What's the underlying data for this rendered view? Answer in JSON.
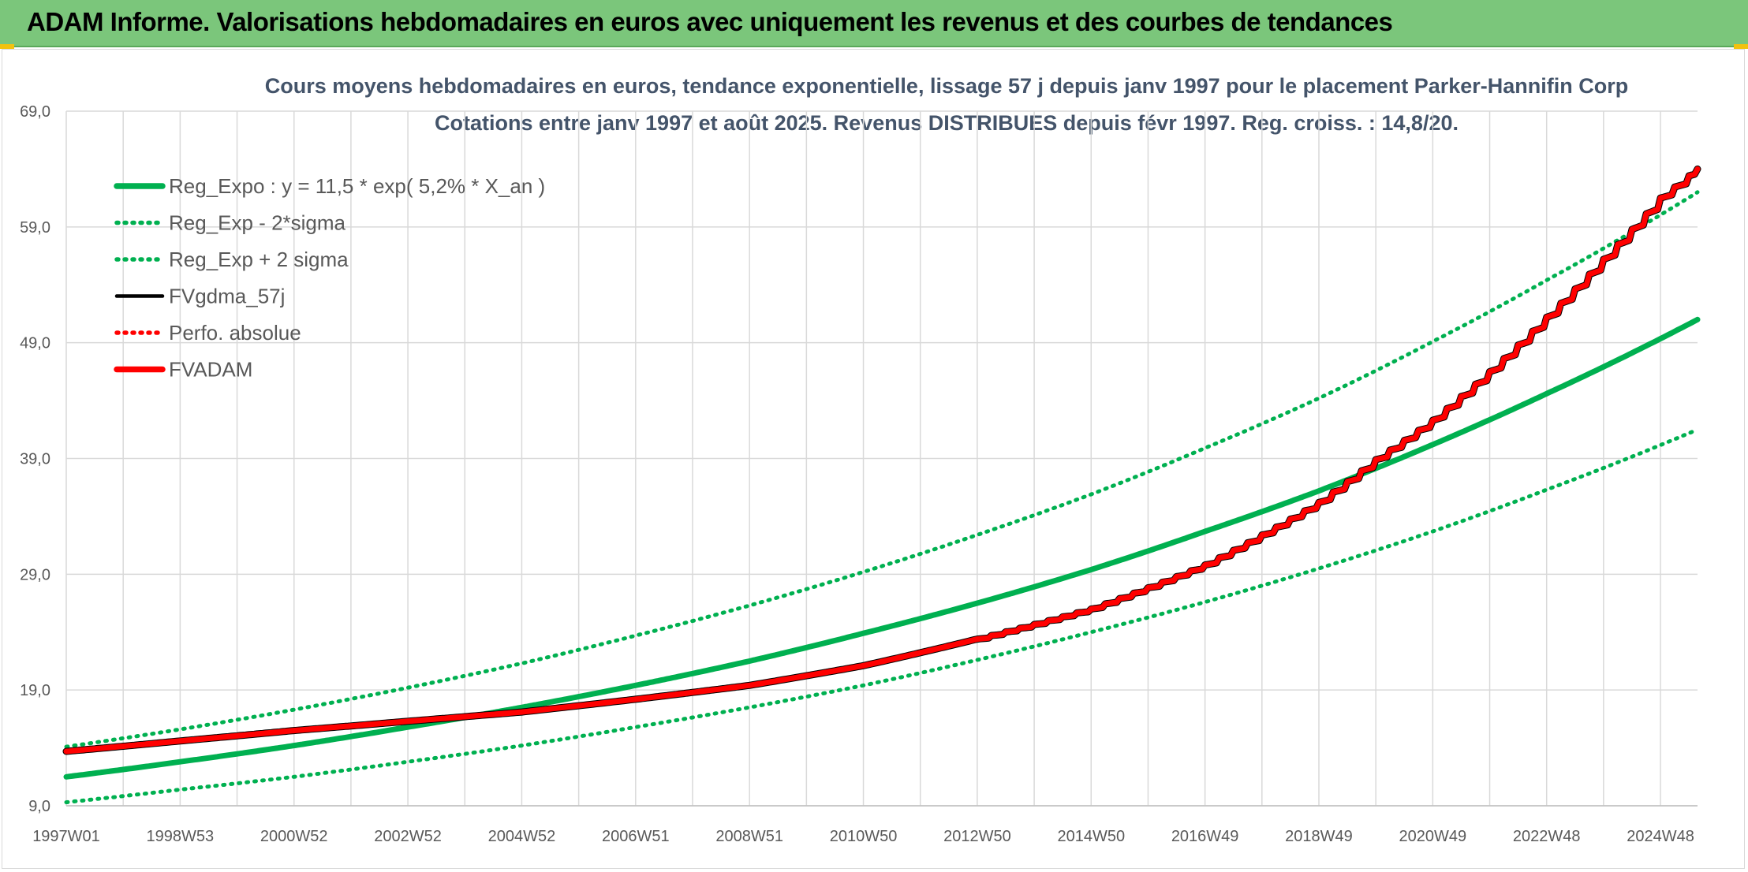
{
  "header": {
    "title": "ADAM Informe. Valorisations hebdomadaires en euros avec uniquement les revenus et des courbes de tendances"
  },
  "chart_data": {
    "type": "line",
    "title": "Cours moyens hebdomadaires en euros, tendance exponentielle, lissage 57 j depuis janv 1997 pour le placement Parker-Hannifin Corp",
    "subtitle": "Cotations entre janv 1997 et août 2025. Revenus DISTRIBUES depuis févr 1997. Reg. croiss. : 14,8/20.",
    "xlabel": "",
    "ylabel": "",
    "ylim": [
      9.0,
      69.0
    ],
    "xlim": [
      1997.0,
      2025.65
    ],
    "y_ticks": [
      "69,0",
      "59,0",
      "49,0",
      "39,0",
      "29,0",
      "19,0",
      "9,0"
    ],
    "y_tick_values": [
      69,
      59,
      49,
      39,
      29,
      19,
      9
    ],
    "x_ticks": [
      "1997W01",
      "1998W53",
      "2000W52",
      "2002W52",
      "2004W52",
      "2006W51",
      "2008W51",
      "2010W50",
      "2012W50",
      "2014W50",
      "2016W49",
      "2018W49",
      "2020W49",
      "2022W48",
      "2024W48"
    ],
    "x_tick_values": [
      1997.0,
      1999.0,
      2001.0,
      2003.0,
      2005.0,
      2007.0,
      2009.0,
      2011.0,
      2013.0,
      2015.0,
      2017.0,
      2019.0,
      2021.0,
      2023.0,
      2025.0
    ],
    "grid": true,
    "legend_position": "top-left",
    "series": [
      {
        "name": "Reg_Expo : y = 11,5 * exp( 5,2% *  X_an )",
        "color": "#00b050",
        "style": "solid-thick",
        "x": [
          1997,
          1999,
          2001,
          2003,
          2005,
          2007,
          2009,
          2011,
          2013,
          2015,
          2017,
          2019,
          2021,
          2023,
          2025.65
        ],
        "y": [
          11.5,
          12.8,
          14.2,
          15.8,
          17.5,
          19.4,
          21.5,
          23.9,
          26.5,
          29.4,
          32.7,
          36.2,
          40.2,
          44.6,
          51.0
        ]
      },
      {
        "name": "Reg_Exp - 2*sigma",
        "color": "#00b050",
        "style": "dotted",
        "x": [
          1997,
          1999,
          2001,
          2003,
          2005,
          2007,
          2009,
          2011,
          2013,
          2015,
          2017,
          2019,
          2021,
          2023,
          2025.65
        ],
        "y": [
          9.3,
          10.4,
          11.5,
          12.8,
          14.2,
          15.8,
          17.5,
          19.4,
          21.6,
          24.0,
          26.6,
          29.5,
          32.7,
          36.3,
          41.5
        ]
      },
      {
        "name": "Reg_Exp + 2 sigma",
        "color": "#00b050",
        "style": "dotted",
        "x": [
          1997,
          1999,
          2001,
          2003,
          2005,
          2007,
          2009,
          2011,
          2013,
          2015,
          2017,
          2019,
          2021,
          2023,
          2025.65
        ],
        "y": [
          14.1,
          15.6,
          17.3,
          19.2,
          21.3,
          23.7,
          26.3,
          29.2,
          32.4,
          35.9,
          39.9,
          44.2,
          49.1,
          54.4,
          62.0
        ]
      },
      {
        "name": "FVgdma_57j",
        "color": "#000000",
        "style": "solid",
        "x": [
          1997,
          1999,
          2001,
          2003,
          2005,
          2007,
          2009,
          2011,
          2013,
          2015,
          2017,
          2019,
          2020,
          2021,
          2022,
          2023,
          2024,
          2025.0,
          2025.65
        ],
        "y": [
          13.7,
          14.6,
          15.5,
          16.3,
          17.1,
          18.2,
          19.4,
          21.1,
          23.4,
          26.0,
          29.8,
          35.2,
          38.9,
          42.3,
          46.5,
          51.2,
          56.2,
          61.5,
          64.0
        ]
      },
      {
        "name": "Perfo. absolue",
        "color": "#ff0000",
        "style": "dotted",
        "x": [
          1997,
          1999,
          2001,
          2003,
          2005,
          2007,
          2009,
          2011,
          2013,
          2015,
          2017,
          2019,
          2020,
          2021,
          2022,
          2023,
          2024,
          2025.0,
          2025.65
        ],
        "y": [
          13.7,
          14.6,
          15.5,
          16.3,
          17.1,
          18.2,
          19.4,
          21.1,
          23.4,
          26.0,
          29.8,
          35.2,
          38.9,
          42.3,
          46.5,
          51.2,
          56.2,
          61.5,
          64.0
        ]
      },
      {
        "name": "FVADAM",
        "color": "#ff0000",
        "style": "solid-thick",
        "x": [
          1997,
          1999,
          2001,
          2003,
          2005,
          2007,
          2009,
          2011,
          2013,
          2015,
          2017,
          2019,
          2020,
          2021,
          2022,
          2023,
          2024,
          2025.0,
          2025.65
        ],
        "y": [
          13.7,
          14.6,
          15.5,
          16.3,
          17.1,
          18.2,
          19.4,
          21.1,
          23.4,
          26.0,
          29.8,
          35.2,
          38.9,
          42.3,
          46.5,
          51.2,
          56.2,
          61.5,
          64.0
        ]
      }
    ]
  }
}
